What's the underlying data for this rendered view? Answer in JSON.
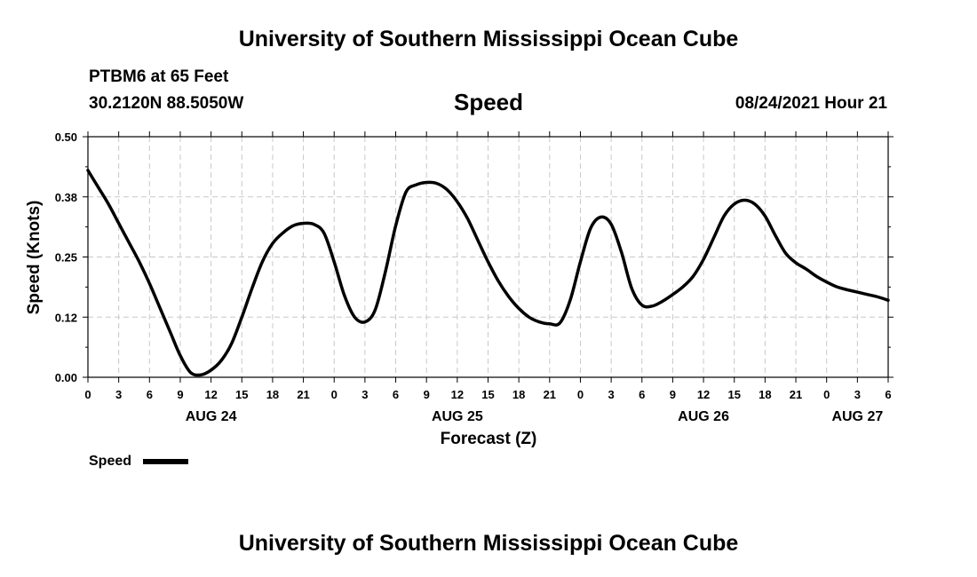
{
  "header": {
    "title": "University of Southern Mississippi Ocean Cube",
    "station": "PTBM6 at 65 Feet",
    "coordinates": "30.2120N  88.5050W",
    "parameter": "Speed",
    "datetime": "08/24/2021 Hour 21"
  },
  "footer": {
    "title": "University of Southern Mississippi Ocean Cube"
  },
  "chart_data": {
    "type": "line",
    "title": "Speed",
    "xlabel": "Forecast (Z)",
    "ylabel": "Speed (Knots)",
    "ylim": [
      0,
      0.5
    ],
    "yticks": [
      "0.00",
      "0.12",
      "0.25",
      "0.38",
      "0.50"
    ],
    "xlim": [
      0,
      78
    ],
    "x_tick_labels": [
      "0",
      "3",
      "6",
      "9",
      "12",
      "15",
      "18",
      "21",
      "0",
      "3",
      "6",
      "9",
      "12",
      "15",
      "18",
      "21",
      "0",
      "3",
      "6",
      "9",
      "12",
      "15",
      "18",
      "21",
      "0",
      "3",
      "6"
    ],
    "day_labels": [
      {
        "label": "AUG 24",
        "x": 12
      },
      {
        "label": "AUG 25",
        "x": 36
      },
      {
        "label": "AUG 26",
        "x": 60
      },
      {
        "label": "AUG 27",
        "x": 75
      }
    ],
    "grid": true,
    "legend": {
      "label": "Speed",
      "position": "bottom-left"
    },
    "line_color": "#000000",
    "series": [
      {
        "name": "Speed",
        "x": [
          0,
          1,
          2,
          3,
          4,
          5,
          6,
          7,
          8,
          9,
          10,
          11,
          12,
          13,
          14,
          15,
          16,
          17,
          18,
          19,
          20,
          21,
          22,
          23,
          24,
          25,
          26,
          27,
          28,
          29,
          30,
          31,
          32,
          33,
          34,
          35,
          36,
          37,
          38,
          39,
          40,
          41,
          42,
          43,
          44,
          45,
          46,
          47,
          48,
          49,
          50,
          51,
          52,
          53,
          54,
          55,
          56,
          57,
          58,
          59,
          60,
          61,
          62,
          63,
          64,
          65,
          66,
          67,
          68,
          69,
          70,
          71,
          72,
          73,
          74,
          75,
          76,
          77,
          78
        ],
        "values": [
          0.43,
          0.395,
          0.36,
          0.32,
          0.28,
          0.24,
          0.195,
          0.145,
          0.095,
          0.045,
          0.01,
          0.005,
          0.015,
          0.035,
          0.07,
          0.125,
          0.185,
          0.24,
          0.278,
          0.3,
          0.315,
          0.32,
          0.318,
          0.3,
          0.24,
          0.17,
          0.125,
          0.115,
          0.14,
          0.22,
          0.315,
          0.385,
          0.4,
          0.405,
          0.403,
          0.39,
          0.365,
          0.33,
          0.285,
          0.24,
          0.2,
          0.168,
          0.143,
          0.125,
          0.115,
          0.111,
          0.113,
          0.16,
          0.24,
          0.31,
          0.333,
          0.318,
          0.26,
          0.185,
          0.15,
          0.148,
          0.158,
          0.172,
          0.188,
          0.21,
          0.245,
          0.29,
          0.335,
          0.36,
          0.368,
          0.36,
          0.335,
          0.295,
          0.258,
          0.238,
          0.225,
          0.21,
          0.198,
          0.188,
          0.182,
          0.177,
          0.172,
          0.167,
          0.16
        ]
      }
    ]
  }
}
